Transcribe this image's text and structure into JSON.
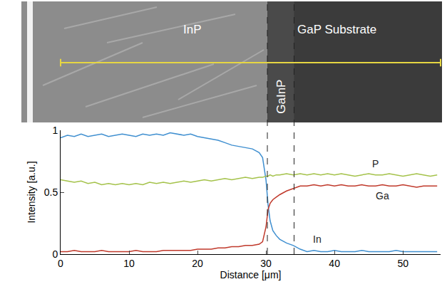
{
  "chart_data": {
    "type": "line",
    "image_labels": [
      "InP",
      "GaInP",
      "GaP Substrate"
    ],
    "boundaries": [
      30.2,
      34.1
    ],
    "x_label": "Distance [μm]",
    "y_label": "Intensity [a.u.]",
    "x": [
      0,
      1,
      2,
      3,
      4,
      5,
      6,
      7,
      8,
      9,
      10,
      11,
      12,
      13,
      14,
      15,
      16,
      17,
      18,
      19,
      20,
      21,
      22,
      23,
      24,
      25,
      26,
      27,
      28,
      29,
      29.5,
      30,
      30.3,
      30.6,
      31,
      31.5,
      32,
      33,
      34,
      35,
      36,
      37,
      38,
      39,
      40,
      41,
      42,
      43,
      44,
      45,
      46,
      47,
      48,
      49,
      50,
      51,
      52,
      53,
      54,
      55
    ],
    "series": [
      {
        "name": "In",
        "color": "#3f8fd0",
        "values": [
          0.94,
          0.96,
          0.95,
          0.97,
          0.95,
          0.96,
          0.97,
          0.95,
          0.96,
          0.97,
          0.96,
          0.95,
          0.97,
          0.96,
          0.97,
          0.96,
          0.98,
          0.97,
          0.96,
          0.97,
          0.95,
          0.94,
          0.93,
          0.92,
          0.9,
          0.88,
          0.87,
          0.86,
          0.85,
          0.82,
          0.78,
          0.6,
          0.4,
          0.27,
          0.19,
          0.15,
          0.12,
          0.09,
          0.07,
          0.04,
          0.02,
          0.03,
          0.02,
          0.02,
          0.03,
          0.02,
          0.02,
          0.02,
          0.03,
          0.02,
          0.02,
          0.02,
          0.02,
          0.03,
          0.02,
          0.02,
          0.02,
          0.02,
          0.02,
          0.02
        ]
      },
      {
        "name": "Ga",
        "color": "#c0392b",
        "values": [
          0.02,
          0.02,
          0.03,
          0.02,
          0.02,
          0.02,
          0.03,
          0.02,
          0.02,
          0.02,
          0.02,
          0.03,
          0.02,
          0.02,
          0.02,
          0.03,
          0.03,
          0.03,
          0.03,
          0.03,
          0.04,
          0.04,
          0.04,
          0.05,
          0.05,
          0.06,
          0.06,
          0.07,
          0.07,
          0.08,
          0.1,
          0.22,
          0.36,
          0.41,
          0.44,
          0.46,
          0.48,
          0.51,
          0.53,
          0.55,
          0.55,
          0.56,
          0.55,
          0.56,
          0.55,
          0.56,
          0.55,
          0.55,
          0.56,
          0.55,
          0.55,
          0.56,
          0.55,
          0.55,
          0.56,
          0.55,
          0.54,
          0.55,
          0.55,
          0.55
        ]
      },
      {
        "name": "P",
        "color": "#a4c24a",
        "values": [
          0.6,
          0.59,
          0.58,
          0.59,
          0.57,
          0.58,
          0.56,
          0.57,
          0.56,
          0.57,
          0.56,
          0.57,
          0.56,
          0.58,
          0.57,
          0.58,
          0.57,
          0.58,
          0.59,
          0.58,
          0.59,
          0.6,
          0.59,
          0.6,
          0.61,
          0.6,
          0.61,
          0.62,
          0.61,
          0.62,
          0.62,
          0.63,
          0.63,
          0.64,
          0.63,
          0.64,
          0.64,
          0.65,
          0.64,
          0.65,
          0.64,
          0.65,
          0.64,
          0.65,
          0.64,
          0.65,
          0.64,
          0.63,
          0.64,
          0.65,
          0.64,
          0.64,
          0.65,
          0.64,
          0.63,
          0.64,
          0.65,
          0.64,
          0.63,
          0.64
        ]
      }
    ],
    "xlim": [
      0,
      55.5
    ],
    "xticks": [
      0,
      10,
      20,
      30,
      40,
      50
    ],
    "ylim": [
      0,
      1
    ],
    "yticks": [
      0,
      0.5,
      1
    ],
    "grid": false
  }
}
